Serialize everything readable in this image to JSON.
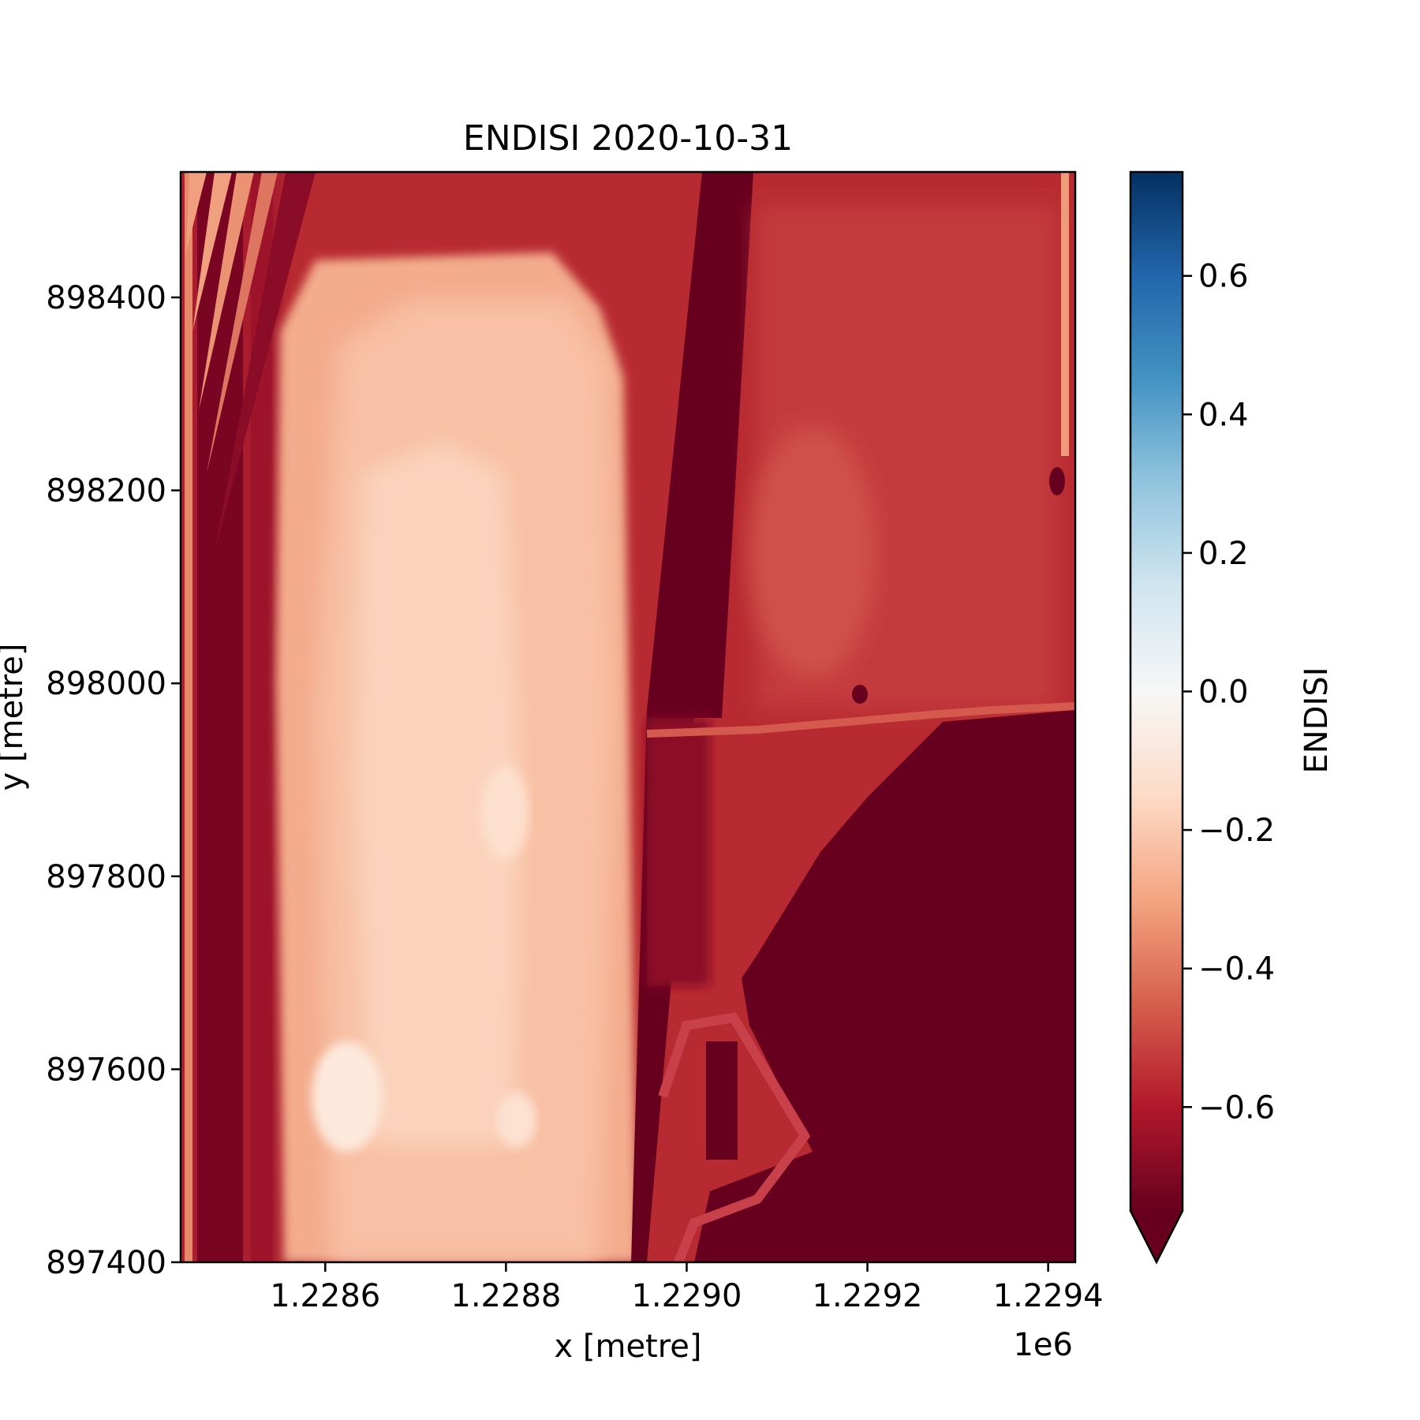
{
  "chart_data": {
    "type": "heatmap",
    "title": "ENDISI 2020-10-31",
    "xlabel": "x [metre]",
    "ylabel": "y [metre]",
    "x_offset_label": "1e6",
    "xlim": [
      1228440,
      1229430
    ],
    "ylim": [
      897400,
      898530
    ],
    "x_ticks": [
      1228600,
      1228800,
      1229000,
      1229200,
      1229400
    ],
    "x_tick_labels": [
      "1.2286",
      "1.2288",
      "1.2290",
      "1.2292",
      "1.2294"
    ],
    "y_ticks": [
      897400,
      897600,
      897800,
      898000,
      898200,
      898400
    ],
    "y_tick_labels": [
      "897400",
      "897600",
      "897800",
      "898000",
      "898200",
      "898400"
    ],
    "colorbar": {
      "label": "ENDISI",
      "vmin": -0.75,
      "vmax": 0.75,
      "extend": "min",
      "colormap": "RdBu",
      "ticks": [
        0.6,
        0.4,
        0.2,
        0.0,
        -0.2,
        -0.4,
        -0.6
      ],
      "tick_labels": [
        "0.6",
        "0.4",
        "0.2",
        "0.0",
        "−0.2",
        "−0.4",
        "−0.6"
      ]
    },
    "grid": false
  }
}
